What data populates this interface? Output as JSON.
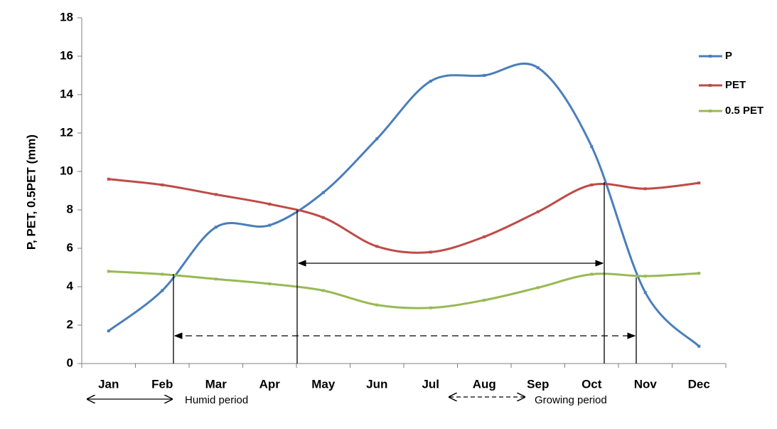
{
  "chart_data": {
    "type": "line",
    "ylabel": "P, PET, 0.5PET (mm)",
    "categories": [
      "Jan",
      "Feb",
      "Mar",
      "Apr",
      "May",
      "Jun",
      "Jul",
      "Aug",
      "Sep",
      "Oct",
      "Nov",
      "Dec"
    ],
    "series": [
      {
        "name": "P",
        "color": "#4a7ebb",
        "values": [
          1.7,
          3.8,
          7.1,
          7.2,
          8.9,
          11.7,
          14.7,
          15.0,
          15.4,
          11.3,
          3.7,
          0.9
        ]
      },
      {
        "name": "PET",
        "color": "#be4b48",
        "values": [
          9.6,
          9.3,
          8.8,
          8.3,
          7.6,
          6.1,
          5.8,
          6.6,
          7.9,
          9.3,
          9.1,
          9.4
        ]
      },
      {
        "name": "0.5 PET",
        "color": "#98b954",
        "values": [
          4.8,
          4.65,
          4.4,
          4.15,
          3.8,
          3.05,
          2.9,
          3.3,
          3.95,
          4.65,
          4.55,
          4.7
        ]
      }
    ],
    "ylim": [
      0,
      18
    ],
    "yticks": [
      0,
      2,
      4,
      6,
      8,
      10,
      12,
      14,
      16,
      18
    ],
    "legend": "right",
    "annotations": [
      "Humid period",
      "Growing period"
    ]
  }
}
